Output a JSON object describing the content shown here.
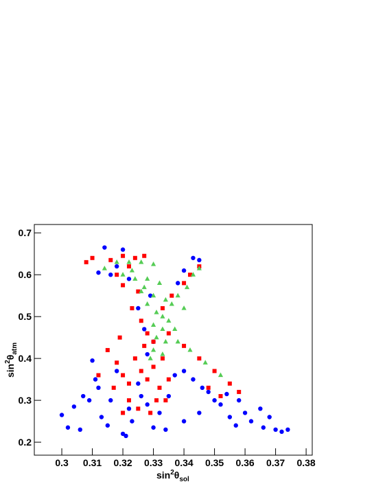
{
  "chart_data": {
    "type": "scatter",
    "x_label": {
      "text": "sin",
      "sup": "2",
      "main": "θ",
      "sub": "sol"
    },
    "y_label": {
      "text": "sin",
      "sup": "2",
      "main": "θ",
      "sub": "atm"
    },
    "xlim": [
      0.291,
      0.382
    ],
    "ylim": [
      0.169,
      0.72
    ],
    "xticks": [
      0.3,
      0.31,
      0.32,
      0.33,
      0.34,
      0.35,
      0.36,
      0.37,
      0.38
    ],
    "yticks": [
      0.2,
      0.3,
      0.4,
      0.5,
      0.6,
      0.7
    ],
    "series": [
      {
        "color": "#0000ff",
        "marker": "circle",
        "x": [
          0.314,
          0.32,
          0.318,
          0.316,
          0.312,
          0.322,
          0.343,
          0.345,
          0.34,
          0.338,
          0.329,
          0.325,
          0.327,
          0.33,
          0.328,
          0.3,
          0.302,
          0.304,
          0.306,
          0.307,
          0.309,
          0.31,
          0.311,
          0.312,
          0.313,
          0.315,
          0.316,
          0.318,
          0.32,
          0.321,
          0.322,
          0.323,
          0.325,
          0.326,
          0.328,
          0.33,
          0.332,
          0.334,
          0.335,
          0.337,
          0.34,
          0.343,
          0.346,
          0.348,
          0.35,
          0.352,
          0.354,
          0.355,
          0.357,
          0.36,
          0.362,
          0.365,
          0.366,
          0.368,
          0.37,
          0.372,
          0.374,
          0.358,
          0.345,
          0.34
        ],
        "values": [
          0.665,
          0.66,
          0.62,
          0.6,
          0.605,
          0.59,
          0.64,
          0.635,
          0.61,
          0.58,
          0.55,
          0.52,
          0.47,
          0.44,
          0.41,
          0.265,
          0.235,
          0.285,
          0.23,
          0.31,
          0.3,
          0.395,
          0.35,
          0.33,
          0.26,
          0.24,
          0.3,
          0.37,
          0.22,
          0.215,
          0.28,
          0.25,
          0.34,
          0.31,
          0.29,
          0.235,
          0.27,
          0.23,
          0.31,
          0.36,
          0.37,
          0.35,
          0.33,
          0.32,
          0.3,
          0.29,
          0.315,
          0.26,
          0.24,
          0.27,
          0.25,
          0.28,
          0.235,
          0.26,
          0.23,
          0.225,
          0.23,
          0.3,
          0.27,
          0.25
        ]
      },
      {
        "color": "#ff0000",
        "marker": "square",
        "x": [
          0.308,
          0.31,
          0.316,
          0.32,
          0.324,
          0.327,
          0.322,
          0.318,
          0.32,
          0.325,
          0.323,
          0.326,
          0.328,
          0.33,
          0.342,
          0.345,
          0.34,
          0.336,
          0.333,
          0.335,
          0.34,
          0.345,
          0.35,
          0.355,
          0.358,
          0.352,
          0.348,
          0.315,
          0.318,
          0.32,
          0.322,
          0.324,
          0.326,
          0.328,
          0.33,
          0.332,
          0.334,
          0.322,
          0.325,
          0.329,
          0.331,
          0.317,
          0.32,
          0.327,
          0.312,
          0.319,
          0.335,
          0.333
        ],
        "values": [
          0.63,
          0.64,
          0.635,
          0.645,
          0.64,
          0.645,
          0.62,
          0.6,
          0.575,
          0.56,
          0.52,
          0.49,
          0.46,
          0.44,
          0.6,
          0.62,
          0.58,
          0.55,
          0.52,
          0.46,
          0.43,
          0.4,
          0.37,
          0.34,
          0.32,
          0.31,
          0.33,
          0.42,
          0.39,
          0.36,
          0.34,
          0.4,
          0.37,
          0.35,
          0.38,
          0.33,
          0.3,
          0.3,
          0.28,
          0.27,
          0.3,
          0.33,
          0.27,
          0.43,
          0.36,
          0.45,
          0.35,
          0.4
        ]
      },
      {
        "color": "#55cc55",
        "marker": "triangle",
        "x": [
          0.314,
          0.318,
          0.322,
          0.326,
          0.33,
          0.32,
          0.324,
          0.328,
          0.332,
          0.326,
          0.33,
          0.334,
          0.328,
          0.331,
          0.333,
          0.335,
          0.33,
          0.333,
          0.331,
          0.334,
          0.33,
          0.333,
          0.338,
          0.34,
          0.338,
          0.341,
          0.343,
          0.345,
          0.336,
          0.337,
          0.342,
          0.347,
          0.352,
          0.329,
          0.327,
          0.323
        ],
        "values": [
          0.615,
          0.63,
          0.63,
          0.63,
          0.625,
          0.6,
          0.59,
          0.59,
          0.58,
          0.56,
          0.55,
          0.54,
          0.53,
          0.51,
          0.5,
          0.49,
          0.48,
          0.47,
          0.45,
          0.44,
          0.42,
          0.41,
          0.44,
          0.52,
          0.55,
          0.57,
          0.6,
          0.615,
          0.53,
          0.47,
          0.42,
          0.39,
          0.36,
          0.4,
          0.57,
          0.61
        ]
      }
    ]
  }
}
